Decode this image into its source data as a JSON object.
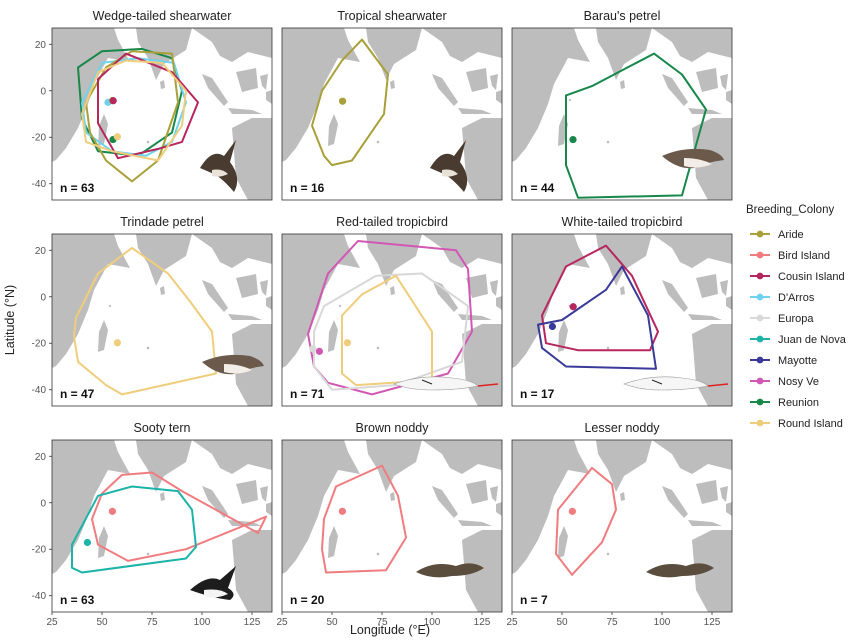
{
  "axes": {
    "x_label": "Longitude (°E)",
    "y_label": "Latitude (°N)",
    "x_ticks": [
      25,
      50,
      75,
      100,
      125
    ],
    "y_ticks": [
      20,
      0,
      -20,
      -40
    ],
    "xlim": [
      25,
      135
    ],
    "ylim": [
      -47,
      27
    ]
  },
  "legend": {
    "title": "Breeding_Colony",
    "placement": "right",
    "items": [
      {
        "label": "Aride",
        "color": "#a9a03a"
      },
      {
        "label": "Bird Island",
        "color": "#f07c80"
      },
      {
        "label": "Cousin Island",
        "color": "#b8265e"
      },
      {
        "label": "D'Arros",
        "color": "#6fd3ee"
      },
      {
        "label": "Europa",
        "color": "#d8d8d8"
      },
      {
        "label": "Juan de Nova",
        "color": "#1cb3a8"
      },
      {
        "label": "Mayotte",
        "color": "#3a3a9a"
      },
      {
        "label": "Nosy Ve",
        "color": "#d257b4"
      },
      {
        "label": "Reunion",
        "color": "#17874a"
      },
      {
        "label": "Round Island",
        "color": "#f0cd7c"
      }
    ]
  },
  "panels": [
    {
      "title": "Wedge-tailed shearwater",
      "n": "n = 63",
      "bird": "shearwater-illustration-icon",
      "colonies": [
        {
          "colony": "Reunion",
          "color": "#17874a",
          "point": [
            55.5,
            -21
          ],
          "range": [
            [
              38,
              10
            ],
            [
              50,
              17
            ],
            [
              70,
              18
            ],
            [
              85,
              14
            ],
            [
              90,
              0
            ],
            [
              85,
              -18
            ],
            [
              68,
              -28
            ],
            [
              48,
              -26
            ],
            [
              40,
              -12
            ]
          ]
        },
        {
          "colony": "D'Arros",
          "color": "#6fd3ee",
          "point": [
            53,
            -5
          ],
          "range": [
            [
              40,
              -5
            ],
            [
              50,
              12
            ],
            [
              68,
              14
            ],
            [
              86,
              12
            ],
            [
              92,
              -5
            ],
            [
              85,
              -22
            ],
            [
              72,
              -28
            ],
            [
              55,
              -26
            ],
            [
              42,
              -18
            ]
          ]
        },
        {
          "colony": "Aride",
          "color": "#a9a03a",
          "point": [
            55.3,
            -4.2
          ],
          "range": [
            [
              42,
              -5
            ],
            [
              52,
              10
            ],
            [
              65,
              17
            ],
            [
              85,
              16
            ],
            [
              88,
              -5
            ],
            [
              78,
              -30
            ],
            [
              65,
              -39
            ],
            [
              52,
              -30
            ],
            [
              44,
              -18
            ]
          ]
        },
        {
          "colony": "Cousin Island",
          "color": "#b8265e",
          "point": [
            55.6,
            -4.3
          ],
          "range": [
            [
              48,
              5
            ],
            [
              62,
              16
            ],
            [
              85,
              8
            ],
            [
              98,
              -5
            ],
            [
              90,
              -22
            ],
            [
              78,
              -25
            ],
            [
              58,
              -29
            ],
            [
              48,
              -14
            ]
          ]
        },
        {
          "colony": "Round Island",
          "color": "#f0cd7c",
          "point": [
            57.7,
            -19.8
          ],
          "range": [
            [
              40,
              -10
            ],
            [
              48,
              8
            ],
            [
              62,
              13
            ],
            [
              80,
              12
            ],
            [
              92,
              0
            ],
            [
              90,
              -15
            ],
            [
              78,
              -30
            ],
            [
              55,
              -26
            ],
            [
              42,
              -22
            ]
          ]
        }
      ]
    },
    {
      "title": "Tropical shearwater",
      "n": "n = 16",
      "bird": "shearwater-illustration-icon",
      "colonies": [
        {
          "colony": "Aride",
          "color": "#a9a03a",
          "point": [
            55.3,
            -4.5
          ],
          "range": [
            [
              46,
              -28
            ],
            [
              40,
              -15
            ],
            [
              45,
              0
            ],
            [
              55,
              13
            ],
            [
              65,
              22
            ],
            [
              78,
              7
            ],
            [
              76,
              -10
            ],
            [
              60,
              -30
            ],
            [
              50,
              -32
            ]
          ]
        }
      ]
    },
    {
      "title": "Barau's petrel",
      "n": "n = 44",
      "bird": "petrel-illustration-icon",
      "colonies": [
        {
          "colony": "Reunion",
          "color": "#17874a",
          "point": [
            55.5,
            -21
          ],
          "range": [
            [
              52,
              -2
            ],
            [
              52,
              -32
            ],
            [
              58,
              -46
            ],
            [
              110,
              -45
            ],
            [
              122,
              -8
            ],
            [
              110,
              7
            ],
            [
              96,
              16
            ],
            [
              65,
              2
            ],
            [
              52,
              -2
            ]
          ]
        }
      ]
    },
    {
      "title": "Trindade petrel",
      "n": "n = 47",
      "bird": "petrel-illustration-icon",
      "colonies": [
        {
          "colony": "Round Island",
          "color": "#f0cd7c",
          "point": [
            57.7,
            -19.8
          ],
          "range": [
            [
              36,
              -17
            ],
            [
              38,
              -28
            ],
            [
              52,
              -38
            ],
            [
              60,
              -42
            ],
            [
              107,
              -33
            ],
            [
              105,
              -15
            ],
            [
              94,
              -2
            ],
            [
              83,
              10
            ],
            [
              65,
              21
            ],
            [
              48,
              10
            ],
            [
              37,
              -9
            ]
          ]
        }
      ]
    },
    {
      "title": "Red-tailed tropicbird",
      "n": "n = 71",
      "bird": "tropicbird-illustration-icon",
      "colonies": [
        {
          "colony": "Nosy Ve",
          "color": "#d257b4",
          "point": [
            43.7,
            -23.5
          ],
          "range": [
            [
              38,
              -16
            ],
            [
              41,
              -30
            ],
            [
              48,
              -37
            ],
            [
              70,
              -42
            ],
            [
              108,
              -33
            ],
            [
              120,
              -15
            ],
            [
              118,
              12
            ],
            [
              112,
              20
            ],
            [
              63,
              24
            ],
            [
              48,
              10
            ],
            [
              38,
              -16
            ]
          ]
        },
        {
          "colony": "Europa",
          "color": "#d8d8d8",
          "point": [
            40.4,
            -22.4
          ],
          "range": [
            [
              46,
              -4
            ],
            [
              60,
              3
            ],
            [
              72,
              9
            ],
            [
              95,
              10
            ],
            [
              118,
              -4
            ],
            [
              115,
              -28
            ],
            [
              82,
              -38
            ],
            [
              50,
              -40
            ],
            [
              41,
              -30
            ],
            [
              41,
              -15
            ]
          ]
        },
        {
          "colony": "Round Island",
          "color": "#f0cd7c",
          "point": [
            57.7,
            -19.8
          ],
          "range": [
            [
              55,
              -8
            ],
            [
              55,
              -33
            ],
            [
              62,
              -38
            ],
            [
              100,
              -36
            ],
            [
              100,
              -15
            ],
            [
              82,
              9
            ],
            [
              65,
              1
            ]
          ]
        }
      ]
    },
    {
      "title": "White-tailed tropicbird",
      "n": "n = 17",
      "bird": "tropicbird-illustration-icon",
      "colonies": [
        {
          "colony": "Cousin Island",
          "color": "#b8265e",
          "point": [
            55.6,
            -4.3
          ],
          "range": [
            [
              40,
              -8
            ],
            [
              42,
              -20
            ],
            [
              58,
              -23
            ],
            [
              94,
              -23
            ],
            [
              98,
              -15
            ],
            [
              85,
              9
            ],
            [
              72,
              22
            ],
            [
              52,
              13
            ]
          ]
        },
        {
          "colony": "Mayotte",
          "color": "#3a3a9a",
          "point": [
            45.2,
            -12.8
          ],
          "range": [
            [
              38,
              -12
            ],
            [
              40,
              -22
            ],
            [
              52,
              -30
            ],
            [
              97,
              -31
            ],
            [
              93,
              -8
            ],
            [
              80,
              13
            ],
            [
              72,
              3
            ],
            [
              50,
              -10
            ]
          ]
        }
      ]
    },
    {
      "title": "Sooty tern",
      "n": "n = 63",
      "bird": "tern-illustration-icon",
      "colonies": [
        {
          "colony": "Bird Island",
          "color": "#f07c80",
          "point": [
            55.2,
            -3.7
          ],
          "range": [
            [
              45,
              -7
            ],
            [
              48,
              -18
            ],
            [
              63,
              -25
            ],
            [
              92,
              -20
            ],
            [
              132,
              -6
            ],
            [
              128,
              -13
            ],
            [
              90,
              5
            ],
            [
              75,
              13
            ],
            [
              60,
              12
            ],
            [
              50,
              4
            ]
          ]
        },
        {
          "colony": "Juan de Nova",
          "color": "#1cb3a8",
          "point": [
            42.7,
            -17.1
          ],
          "range": [
            [
              35,
              -18
            ],
            [
              35,
              -28
            ],
            [
              40,
              -30
            ],
            [
              92,
              -24
            ],
            [
              97,
              -19
            ],
            [
              95,
              -3
            ],
            [
              88,
              5
            ],
            [
              65,
              7
            ],
            [
              48,
              3
            ]
          ]
        }
      ]
    },
    {
      "title": "Brown noddy",
      "n": "n = 20",
      "bird": "noddy-illustration-icon",
      "colonies": [
        {
          "colony": "Bird Island",
          "color": "#f07c80",
          "point": [
            55.2,
            -3.7
          ],
          "range": [
            [
              46,
              -7
            ],
            [
              45,
              -20
            ],
            [
              47,
              -30
            ],
            [
              77,
              -29
            ],
            [
              87,
              -15
            ],
            [
              83,
              3
            ],
            [
              75,
              16
            ],
            [
              52,
              7
            ]
          ]
        }
      ]
    },
    {
      "title": "Lesser noddy",
      "n": "n = 7",
      "bird": "noddy-illustration-icon",
      "colonies": [
        {
          "colony": "Bird Island",
          "color": "#f07c80",
          "point": [
            55.2,
            -3.7
          ],
          "range": [
            [
              48,
              -3
            ],
            [
              47,
              -22
            ],
            [
              55,
              -31
            ],
            [
              70,
              -17
            ],
            [
              77,
              -3
            ],
            [
              75,
              8
            ],
            [
              65,
              15
            ]
          ]
        }
      ]
    }
  ]
}
